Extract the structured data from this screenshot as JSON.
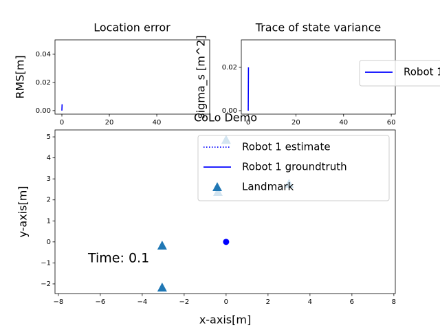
{
  "chart_data": [
    {
      "type": "line",
      "title": "Location error",
      "y_label": "RMS[m]",
      "xlim": [
        -2.9,
        62.3
      ],
      "ylim": [
        -0.0025,
        0.0502
      ],
      "xticks": [
        0,
        20,
        40
      ],
      "yticks": [
        {
          "value": 0,
          "label": "0.00"
        },
        {
          "value": 0.02,
          "label": "0.02"
        },
        {
          "value": 0.04,
          "label": "0.04"
        }
      ],
      "series": [
        {
          "type": "line",
          "color": "#0000ff",
          "linestyle": "solid",
          "x": [
            0,
            0.1
          ],
          "values": [
            0,
            0.0045
          ]
        }
      ]
    },
    {
      "type": "line",
      "title": "Trace of state variance",
      "y_label": "sigma_s [m^2]",
      "xlim": [
        -2.9,
        61.7
      ],
      "ylim": [
        -0.0016,
        0.0327
      ],
      "xticks": [
        0,
        20,
        40,
        60
      ],
      "yticks": [
        {
          "value": 0,
          "label": "0.00"
        },
        {
          "value": 0.02,
          "label": "0.02"
        }
      ],
      "legend": "outside right",
      "series": [
        {
          "name": "Robot 1",
          "type": "line",
          "color": "#0000ff",
          "linestyle": "solid",
          "x": [
            0,
            0.1
          ],
          "values": [
            0,
            0.02
          ]
        }
      ]
    },
    {
      "type": "line",
      "title": "CoLo Demo",
      "x_label": "x-axis[m]",
      "y_label": "y-axis[m]",
      "annotation": "Time: 0.1",
      "xlim": [
        -8.16,
        8.07
      ],
      "ylim": [
        -2.46,
        5.33
      ],
      "xticks": [
        {
          "value": -8,
          "label": "−8"
        },
        {
          "value": -6,
          "label": "−6"
        },
        {
          "value": -4,
          "label": "−4"
        },
        {
          "value": -2,
          "label": "−2"
        },
        0,
        2,
        4,
        6,
        8
      ],
      "yticks": [
        {
          "value": -2,
          "label": "−2"
        },
        {
          "value": -1,
          "label": "−1"
        },
        0,
        1,
        2,
        3,
        4,
        5
      ],
      "legend": "upper right",
      "series": [
        {
          "name": "Robot 1 estimate",
          "type": "line",
          "color": "#0000ff",
          "linestyle": "dotted",
          "x": [
            0
          ],
          "values": [
            0
          ]
        },
        {
          "name": "Robot 1 groundtruth",
          "type": "line",
          "color": "#0000ff",
          "linestyle": "solid",
          "marker": "o",
          "x": [
            0
          ],
          "values": [
            0
          ]
        },
        {
          "name": "Landmark",
          "type": "scatter",
          "color": "#1f77b4",
          "marker": "^",
          "x": [
            -3.05,
            -3.05,
            3.0,
            0.0,
            -0.39
          ],
          "values": [
            -0.2,
            -2.2,
            2.74,
            4.83,
            2.35
          ]
        }
      ]
    }
  ]
}
